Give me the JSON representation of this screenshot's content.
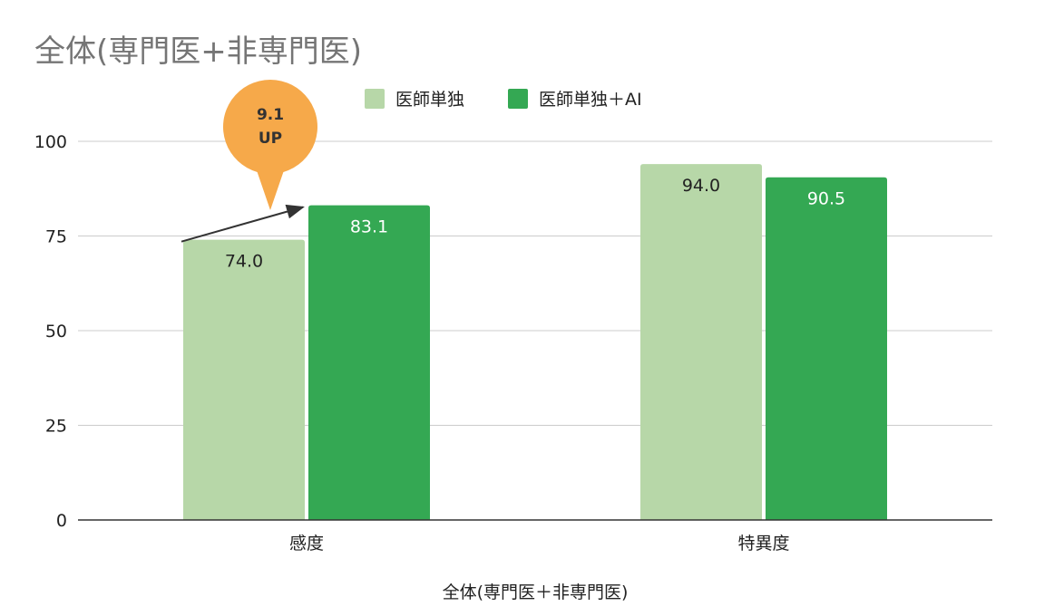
{
  "chart_data": {
    "type": "bar",
    "title": "全体(専門医+非専門医)",
    "xlabel": "全体(専門医＋非専門医)",
    "ylabel": "",
    "categories": [
      "感度",
      "特異度"
    ],
    "series": [
      {
        "name": "医師単独",
        "values": [
          74.0,
          94.0
        ],
        "color": "#b7d7a8",
        "label_color": "#222222"
      },
      {
        "name": "医師単独＋AI",
        "values": [
          83.1,
          90.5
        ],
        "color": "#34a853",
        "label_color": "#ffffff"
      }
    ],
    "data_labels": [
      [
        "74.0",
        "94.0"
      ],
      [
        "83.1",
        "90.5"
      ]
    ],
    "ylim": [
      0,
      100
    ],
    "yticks": [
      0,
      25,
      50,
      75,
      100
    ],
    "grid": true,
    "legend_position": "top",
    "annotation": {
      "line1": "9.1",
      "line2": "UP",
      "color": "#f6a94a"
    }
  }
}
